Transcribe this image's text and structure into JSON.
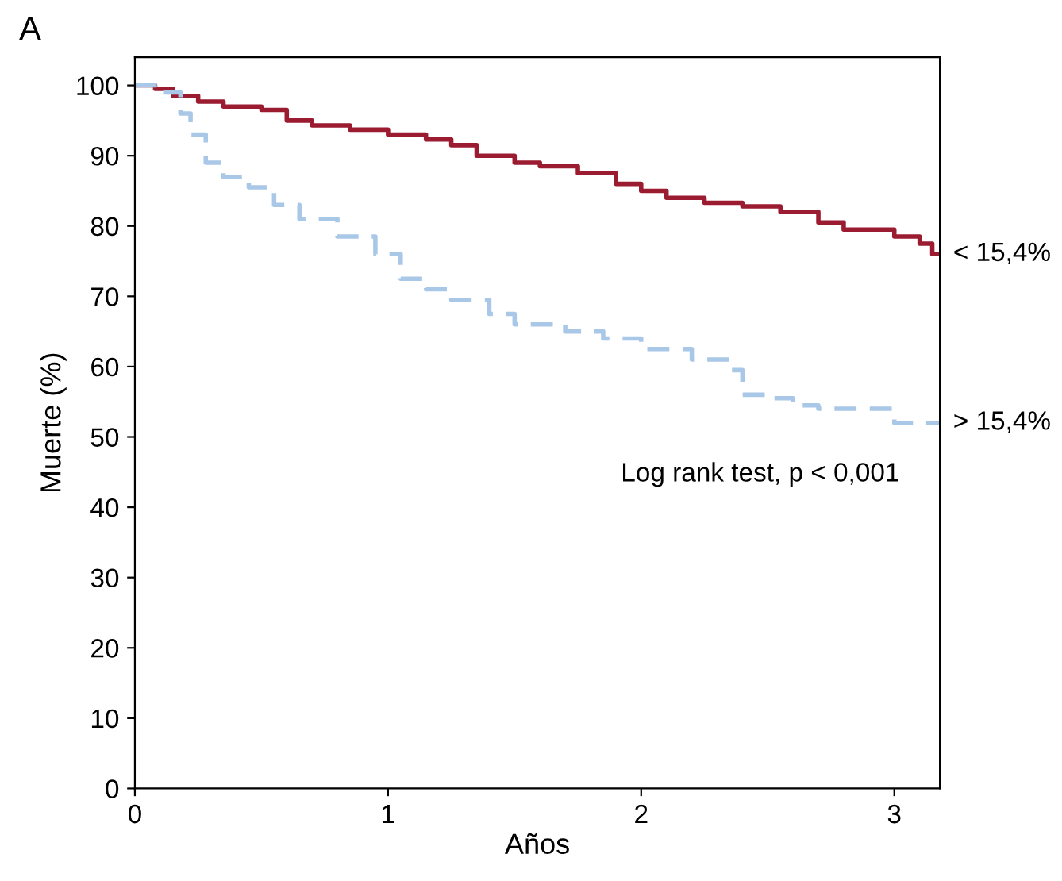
{
  "chart_data": {
    "type": "step",
    "xlabel": "Años",
    "ylabel": "Muerte (%)",
    "xlim": [
      0,
      3.18
    ],
    "ylim": [
      0,
      104
    ],
    "xticks": [
      0,
      1,
      2,
      3
    ],
    "yticks": [
      0,
      10,
      20,
      30,
      40,
      50,
      60,
      70,
      80,
      90,
      100
    ],
    "grid": false,
    "legend": false,
    "annotations": [
      "A",
      "Log rank test, p < 0,001"
    ],
    "series": [
      {
        "name": "< 15,4%",
        "color": "#9b1b30",
        "line_style": "solid",
        "x": [
          0,
          0.08,
          0.15,
          0.25,
          0.35,
          0.5,
          0.6,
          0.7,
          0.85,
          1.0,
          1.15,
          1.25,
          1.35,
          1.5,
          1.6,
          1.75,
          1.9,
          2.0,
          2.1,
          2.25,
          2.4,
          2.55,
          2.7,
          2.8,
          3.0,
          3.1,
          3.15,
          3.18
        ],
        "values": [
          100,
          99.5,
          98.5,
          97.7,
          97,
          96.5,
          95,
          94.3,
          93.7,
          93,
          92.3,
          91.5,
          90,
          89,
          88.5,
          87.5,
          86,
          85,
          84,
          83.3,
          82.8,
          82,
          80.5,
          79.5,
          78.5,
          77.5,
          76,
          76
        ]
      },
      {
        "name": "> 15,4%",
        "color": "#a9c8e8",
        "line_style": "dashed",
        "x": [
          0,
          0.1,
          0.18,
          0.22,
          0.28,
          0.35,
          0.45,
          0.55,
          0.65,
          0.8,
          0.95,
          1.05,
          1.15,
          1.25,
          1.4,
          1.5,
          1.7,
          1.85,
          2.0,
          2.2,
          2.35,
          2.4,
          2.5,
          2.6,
          2.7,
          3.0,
          3.18
        ],
        "values": [
          100,
          99,
          96,
          93,
          89,
          87,
          85.5,
          83,
          81,
          78.5,
          76,
          72.5,
          71,
          69.5,
          67.5,
          66,
          65,
          64,
          62.5,
          61,
          59.5,
          56,
          55.5,
          54.5,
          54,
          52,
          52
        ]
      }
    ]
  }
}
